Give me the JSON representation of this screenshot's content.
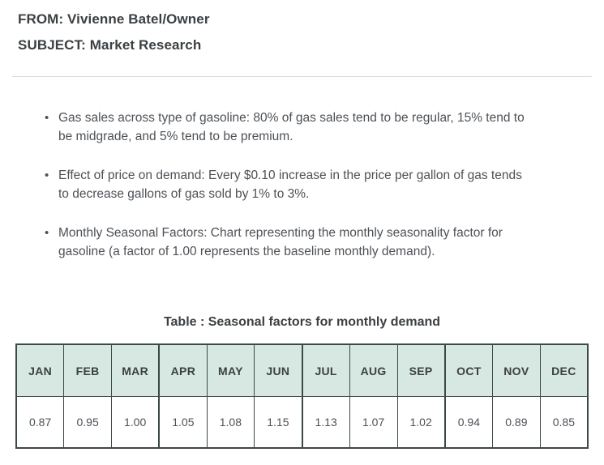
{
  "memo": {
    "from_line": "FROM: Vivienne Batel/Owner",
    "subject_line": "SUBJECT: Market Research"
  },
  "bullets": [
    {
      "lines": [
        "Gas sales across type of gasoline: 80% of gas sales tend to be regular, 15% tend to",
        "be midgrade, and 5% tend to be premium."
      ]
    },
    {
      "lines": [
        "Effect of price on demand: Every $0.10 increase in the price per gallon of gas tends",
        "to decrease gallons of gas sold by 1% to 3%."
      ]
    },
    {
      "lines": [
        "Monthly Seasonal Factors: Chart representing the monthly seasonality factor for",
        "gasoline (a factor of 1.00 represents the baseline monthly demand)."
      ]
    }
  ],
  "bullet_glyph": "•",
  "seasonal_table": {
    "title": "Table : Seasonal factors for monthly demand",
    "months": [
      "JAN",
      "FEB",
      "MAR",
      "APR",
      "MAY",
      "JUN",
      "JUL",
      "AUG",
      "SEP",
      "OCT",
      "NOV",
      "DEC"
    ],
    "factors": [
      "0.87",
      "0.95",
      "1.00",
      "1.05",
      "1.08",
      "1.15",
      "1.13",
      "1.07",
      "1.02",
      "0.94",
      "0.89",
      "0.85"
    ]
  },
  "colors": {
    "header_cell_bg": "#d6e8e1",
    "table_border": "#3d4849",
    "heading_text": "#3c4043",
    "body_text": "#4d5156",
    "divider": "#dadce0"
  }
}
